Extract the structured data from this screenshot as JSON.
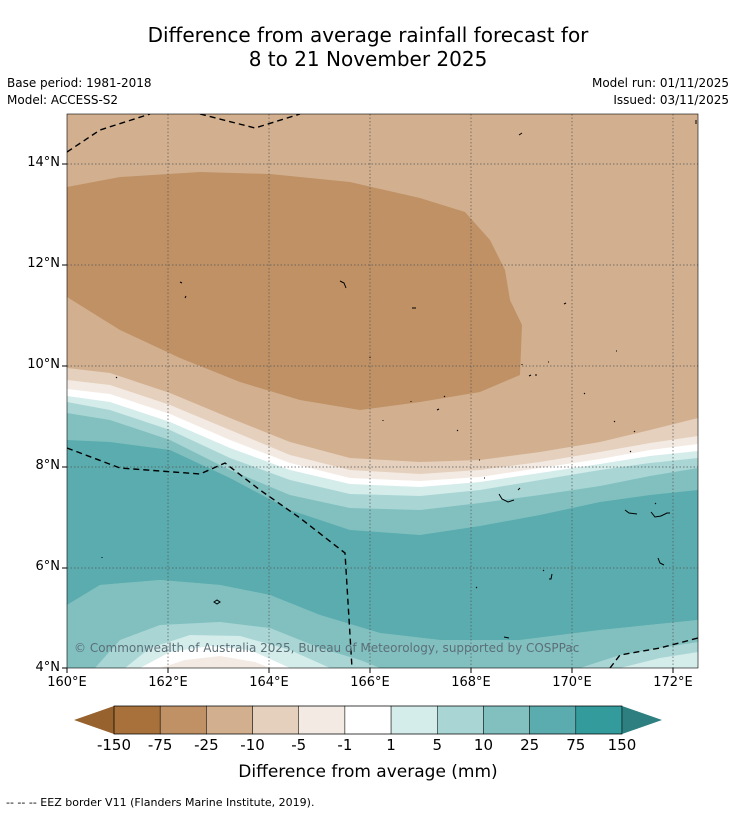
{
  "title_line1": "Difference from average rainfall forecast for",
  "title_line2": "8 to 21 November 2025",
  "base_period": "Base period: 1981-2018",
  "model": "Model: ACCESS-S2",
  "model_run": "Model run: 01/11/2025",
  "issued": "Issued: 03/11/2025",
  "map": {
    "lat_labels": [
      "14°N",
      "12°N",
      "10°N",
      "8°N",
      "6°N",
      "4°N"
    ],
    "lon_labels": [
      "160°E",
      "162°E",
      "164°E",
      "166°E",
      "168°E",
      "170°E",
      "172°E"
    ],
    "extent": {
      "lon_min": 160,
      "lon_max": 172.5,
      "lat_min": 4,
      "lat_max": 15
    },
    "copyright": "© Commonwealth of Australia 2025, Bureau of Meteorology, supported by COSPPac"
  },
  "colorbar": {
    "ticks": [
      "-150",
      "-75",
      "-25",
      "-10",
      "-5",
      "-1",
      "1",
      "5",
      "10",
      "25",
      "75",
      "150"
    ],
    "colors": [
      "#a8703a",
      "#bf9165",
      "#d2b08f",
      "#e5d0bd",
      "#f3ebe3",
      "#ffffff",
      "#d4ecea",
      "#a9d6d5",
      "#82c0c0",
      "#5aacae",
      "#349b9c"
    ],
    "under_color": "#98622f",
    "over_color": "#2d7f80",
    "title": "Difference from average (mm)"
  },
  "footer": "--  --  -- EEZ border V11 (Flanders Marine Institute, 2019)."
}
